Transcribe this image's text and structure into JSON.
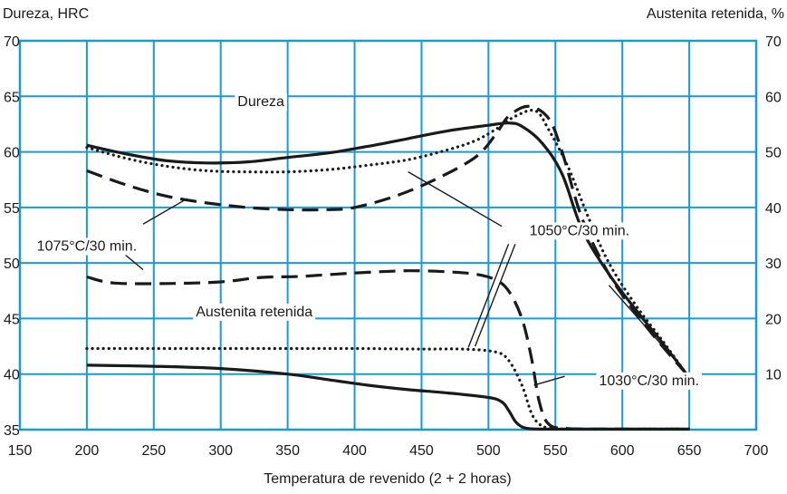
{
  "chart_data": {
    "type": "line",
    "title": "",
    "xlabel": "Temperatura de revenido (2 + 2 horas)",
    "ylabel_left": "Dureza, HRC",
    "ylabel_right": "Austenita retenida, %",
    "xlim": [
      150,
      700
    ],
    "ylim_left": [
      35,
      70
    ],
    "ylim_right": [
      0,
      70
    ],
    "x_ticks": [
      150,
      200,
      250,
      300,
      350,
      400,
      450,
      500,
      550,
      600,
      650,
      700
    ],
    "y_left_ticks": [
      35,
      40,
      45,
      50,
      55,
      60,
      65,
      70
    ],
    "y_right_ticks": [
      10,
      20,
      30,
      40,
      50,
      60,
      70
    ],
    "grid": true,
    "grid_color": "#1a9bd7",
    "line_color": "#1a1a1a",
    "series": [
      {
        "group": "Dureza",
        "condition": "1030°C/30 min.",
        "style": "solid",
        "axis": "left",
        "x": [
          200,
          230,
          260,
          290,
          320,
          350,
          380,
          410,
          440,
          470,
          500,
          515,
          525,
          540,
          555,
          570,
          590,
          610,
          630,
          648
        ],
        "y": [
          60.6,
          59.8,
          59.2,
          59.0,
          59.1,
          59.5,
          59.9,
          60.5,
          61.2,
          61.9,
          62.4,
          62.6,
          62.3,
          60.8,
          58.0,
          53.0,
          49.0,
          45.8,
          42.8,
          40.0
        ]
      },
      {
        "group": "Dureza",
        "condition": "1050°C/30 min.",
        "style": "dotted",
        "axis": "left",
        "x": [
          200,
          230,
          260,
          290,
          320,
          350,
          380,
          410,
          440,
          470,
          490,
          505,
          520,
          535,
          545,
          560,
          575,
          590,
          610,
          630,
          648
        ],
        "y": [
          60.4,
          59.4,
          58.7,
          58.3,
          58.2,
          58.2,
          58.4,
          58.8,
          59.3,
          60.2,
          61.0,
          62.0,
          63.2,
          63.7,
          62.0,
          58.5,
          54.0,
          50.0,
          46.2,
          43.0,
          40.0
        ]
      },
      {
        "group": "Dureza",
        "condition": "1075°C/30 min.",
        "style": "dashed",
        "axis": "left",
        "x": [
          200,
          230,
          260,
          290,
          320,
          350,
          380,
          400,
          430,
          460,
          490,
          505,
          515,
          530,
          545,
          555,
          570,
          590,
          610,
          630,
          648
        ],
        "y": [
          58.3,
          57.0,
          56.0,
          55.4,
          55.0,
          54.8,
          54.8,
          55.0,
          56.0,
          57.5,
          59.5,
          61.5,
          63.2,
          64.1,
          63.0,
          60.0,
          54.0,
          49.0,
          45.5,
          42.5,
          40.0
        ]
      },
      {
        "group": "Austenita retenida",
        "condition": "1030°C/30 min.",
        "style": "solid",
        "axis": "right",
        "x": [
          200,
          250,
          300,
          350,
          380,
          410,
          440,
          470,
          500,
          510,
          515,
          520,
          525,
          530,
          540,
          560,
          600,
          650
        ],
        "y": [
          11.6,
          11.4,
          11.0,
          10.0,
          9.0,
          8.0,
          7.2,
          6.6,
          5.8,
          5.0,
          3.5,
          1.5,
          0.5,
          0.2,
          0.1,
          0.1,
          0.1,
          0.1
        ]
      },
      {
        "group": "Austenita retenida",
        "condition": "1050°C/30 min.",
        "style": "dotted",
        "axis": "right",
        "x": [
          200,
          250,
          300,
          350,
          400,
          450,
          480,
          505,
          515,
          525,
          532,
          538,
          545,
          560,
          600,
          650
        ],
        "y": [
          14.6,
          14.6,
          14.6,
          14.6,
          14.6,
          14.5,
          14.5,
          14.0,
          12.5,
          8.0,
          3.0,
          1.0,
          0.3,
          0.1,
          0.1,
          0.1
        ]
      },
      {
        "group": "Austenita retenida",
        "condition": "1075°C/30 min.",
        "style": "dashed",
        "axis": "right",
        "x": [
          200,
          220,
          260,
          300,
          330,
          360,
          400,
          440,
          470,
          490,
          505,
          515,
          525,
          532,
          538,
          545,
          560,
          600,
          650
        ],
        "y": [
          27.5,
          26.4,
          26.3,
          26.6,
          27.4,
          27.6,
          28.2,
          28.6,
          28.4,
          28.0,
          27.0,
          25.0,
          20.0,
          13.0,
          5.0,
          1.0,
          0.2,
          0.1,
          0.1
        ]
      }
    ],
    "annotations": [
      {
        "id": "dureza",
        "text": "Dureza",
        "x": 330,
        "y": 64.6
      },
      {
        "id": "austenita",
        "text": "Austenita retenida",
        "x": 325,
        "y": 45.7
      },
      {
        "id": "t1075",
        "text": "1075°C/30 min.",
        "x": 200,
        "y": 51.6
      },
      {
        "id": "t1050",
        "text": "1050°C/30 min.",
        "x": 568,
        "y": 53.0
      },
      {
        "id": "t1030",
        "text": "1030°C/30 min.",
        "x": 620,
        "y": 39.5
      }
    ],
    "leaders": [
      {
        "x1": 242,
        "y1": 53.5,
        "x2": 275,
        "y2": 55.8
      },
      {
        "x1": 242,
        "y1": 49.4,
        "x2": 228,
        "y2": 50.8
      },
      {
        "x1": 510,
        "y1": 53.3,
        "x2": 440,
        "y2": 58.2
      },
      {
        "x1": 515,
        "y1": 51.7,
        "x2": 485,
        "y2": 42.4
      },
      {
        "x1": 520,
        "y1": 51.7,
        "x2": 490,
        "y2": 42.5
      },
      {
        "x1": 557,
        "y1": 39.8,
        "x2": 534,
        "y2": 39.0
      },
      {
        "x1": 645,
        "y1": 40.5,
        "x2": 590,
        "y2": 48.0
      }
    ]
  }
}
